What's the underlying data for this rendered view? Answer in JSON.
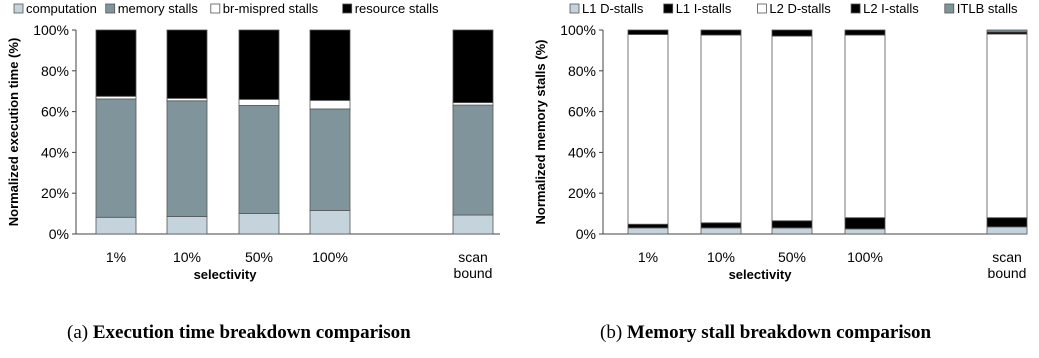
{
  "chart_data": [
    {
      "type": "bar",
      "stacked": true,
      "legend": "top",
      "xlabel": "selectivity",
      "ylabel": "Normalized execution time (%)",
      "ylim": [
        0,
        100
      ],
      "yticks": [
        "0%",
        "20%",
        "40%",
        "60%",
        "80%",
        "100%"
      ],
      "categories": [
        "1%",
        "10%",
        "50%",
        "100%",
        "scan bound"
      ],
      "series": [
        {
          "name": "computation",
          "color": "#c5d4dc",
          "values": [
            8.2,
            8.6,
            10.1,
            11.5,
            9.3
          ]
        },
        {
          "name": "memory stalls",
          "color": "#7f959b",
          "values": [
            58.0,
            56.7,
            52.9,
            49.8,
            53.9
          ]
        },
        {
          "name": "br-mispred stalls",
          "color": "#ffffff",
          "values": [
            1.3,
            1.2,
            3.0,
            4.2,
            1.2
          ]
        },
        {
          "name": "resource stalls",
          "color": "#000000",
          "values": [
            32.5,
            33.5,
            34.0,
            34.5,
            35.6
          ]
        }
      ],
      "caption_prefix": "(a)",
      "caption": "Execution time breakdown comparison"
    },
    {
      "type": "bar",
      "stacked": true,
      "legend": "top",
      "xlabel": "selectivity",
      "ylabel": "Normalized memory stalls (%)",
      "ylim": [
        0,
        100
      ],
      "yticks": [
        "0%",
        "20%",
        "40%",
        "60%",
        "80%",
        "100%"
      ],
      "categories": [
        "1%",
        "10%",
        "50%",
        "100%",
        "scan bound"
      ],
      "series": [
        {
          "name": "L1 D-stalls",
          "color": "#c5d4dc",
          "values": [
            3.0,
            3.0,
            3.0,
            2.5,
            3.5
          ]
        },
        {
          "name": "L1 I-stalls",
          "color": "#000000",
          "values": [
            1.8,
            2.5,
            3.5,
            5.5,
            4.5
          ]
        },
        {
          "name": "L2 D-stalls",
          "color": "#ffffff",
          "values": [
            93.0,
            92.0,
            90.5,
            89.5,
            90.0
          ]
        },
        {
          "name": "L2 I-stalls",
          "color": "#000000",
          "values": [
            2.2,
            2.5,
            3.0,
            2.5,
            1.0
          ]
        },
        {
          "name": "ITLB stalls",
          "color": "#7f959b",
          "values": [
            0.0,
            0.0,
            0.0,
            0.0,
            1.0
          ]
        }
      ],
      "caption_prefix": "(b)",
      "caption": "Memory stall breakdown comparison"
    }
  ]
}
